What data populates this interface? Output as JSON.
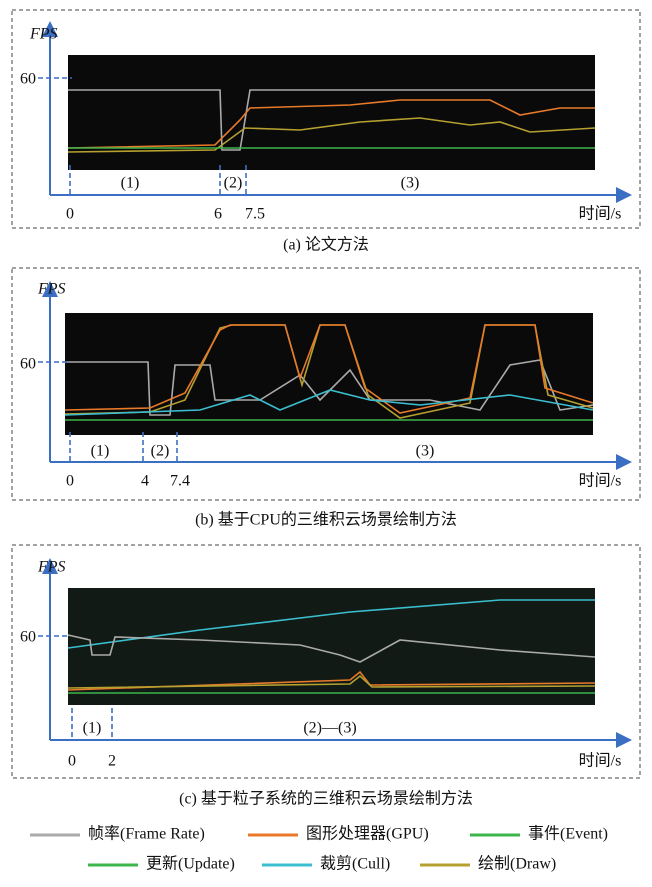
{
  "panels": [
    {
      "y_label": "FPS",
      "y_tick": "60",
      "segments": [
        "(1)",
        "(2)",
        "(3)"
      ],
      "x_ticks": [
        "0",
        "6",
        "7.5"
      ],
      "x_label": "时间/s",
      "caption": "(a) 论文方法"
    },
    {
      "y_label": "FPS",
      "y_tick": "60",
      "segments": [
        "(1)",
        "(2)",
        "(3)"
      ],
      "x_ticks": [
        "0",
        "4",
        "7.4"
      ],
      "x_label": "时间/s",
      "caption": "(b) 基于CPU的三维积云场景绘制方法"
    },
    {
      "y_label": "FPS",
      "y_tick": "60",
      "segments": [
        "(1)",
        "(2)—(3)"
      ],
      "x_ticks": [
        "0",
        "2"
      ],
      "x_label": "时间/s",
      "caption": "(c) 基于粒子系统的三维积云场景绘制方法"
    }
  ],
  "legend": [
    "帧率(Frame Rate)",
    "图形处理器(GPU)",
    "事件(Event)",
    "更新(Update)",
    "裁剪(Cull)",
    "绘制(Draw)"
  ]
}
